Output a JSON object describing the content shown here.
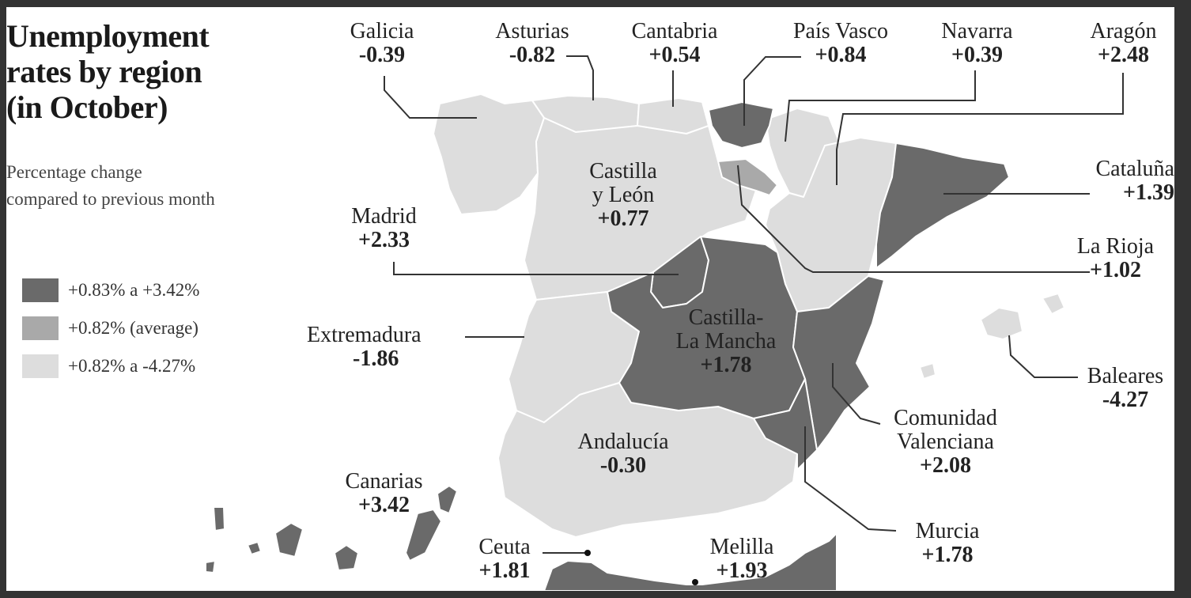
{
  "title_lines": [
    "Unemployment",
    "rates by region",
    "(in October)"
  ],
  "subtitle_lines": [
    "Percentage change",
    "compared to previous month"
  ],
  "colors": {
    "high": "#6a6a6a",
    "average": "#a9a9a9",
    "low": "#dddddd",
    "line": "#333333",
    "background": "#ffffff",
    "frame": "#333333"
  },
  "legend": [
    {
      "label": "+0.83% a +3.42%",
      "color": "#6a6a6a"
    },
    {
      "label": "+0.82% (average)",
      "color": "#a9a9a9"
    },
    {
      "label": "+0.82% a -4.27%",
      "color": "#dddddd"
    }
  ],
  "regions": {
    "galicia": {
      "name": "Galicia",
      "value": "-0.39"
    },
    "asturias": {
      "name": "Asturias",
      "value": "-0.82"
    },
    "cantabria": {
      "name": "Cantabria",
      "value": "+0.54"
    },
    "pais_vasco": {
      "name": "País Vasco",
      "value": "+0.84"
    },
    "navarra": {
      "name": "Navarra",
      "value": "+0.39"
    },
    "aragon": {
      "name": "Aragón",
      "value": "+2.48"
    },
    "cataluna": {
      "name": "Cataluña",
      "value": "+1.39"
    },
    "la_rioja": {
      "name": "La Rioja",
      "value": "+1.02"
    },
    "castilla_leon": {
      "name_lines": [
        "Castilla",
        "y León"
      ],
      "value": "+0.77"
    },
    "madrid": {
      "name": "Madrid",
      "value": "+2.33"
    },
    "extremadura": {
      "name": "Extremadura",
      "value": "-1.86"
    },
    "castilla_la_mancha": {
      "name_lines": [
        "Castilla-",
        "La Mancha"
      ],
      "value": "+1.78"
    },
    "baleares": {
      "name": "Baleares",
      "value": "-4.27"
    },
    "valenciana": {
      "name_lines": [
        "Comunidad",
        "Valenciana"
      ],
      "value": "+2.08"
    },
    "andalucia": {
      "name": "Andalucía",
      "value": "-0.30"
    },
    "canarias": {
      "name": "Canarias",
      "value": "+3.42"
    },
    "murcia": {
      "name": "Murcia",
      "value": "+1.78"
    },
    "ceuta": {
      "name": "Ceuta",
      "value": "+1.81"
    },
    "melilla": {
      "name": "Melilla",
      "value": "+1.93"
    }
  }
}
